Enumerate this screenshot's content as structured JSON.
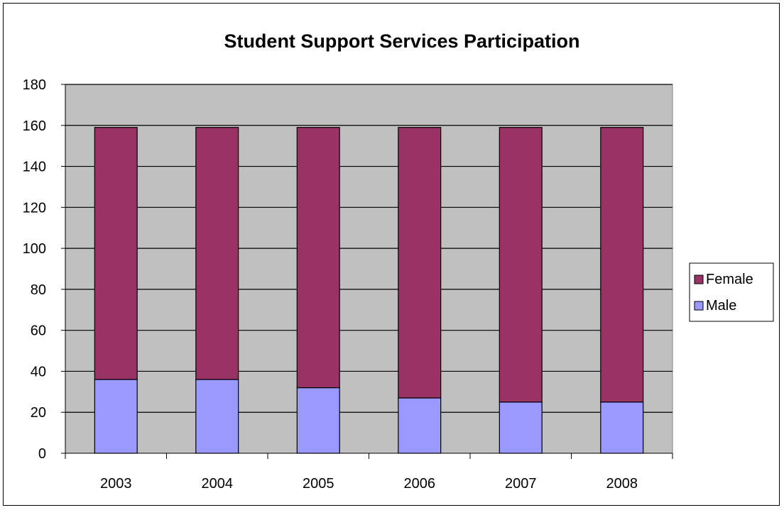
{
  "chart_data": {
    "type": "bar",
    "stacked": true,
    "title": "Student Support Services Participation",
    "categories": [
      "2003",
      "2004",
      "2005",
      "2006",
      "2007",
      "2008"
    ],
    "series": [
      {
        "name": "Male",
        "values": [
          36,
          36,
          32,
          27,
          25,
          25
        ],
        "color": "#9999ff"
      },
      {
        "name": "Female",
        "values": [
          123,
          123,
          127,
          132,
          134,
          134
        ],
        "color": "#993366"
      }
    ],
    "ylim": [
      0,
      180
    ],
    "yticks": [
      0,
      20,
      40,
      60,
      80,
      100,
      120,
      140,
      160,
      180
    ],
    "grid": true,
    "plot_background": "#c0c0c0",
    "legend": {
      "position": "right",
      "order": [
        "Female",
        "Male"
      ]
    }
  }
}
